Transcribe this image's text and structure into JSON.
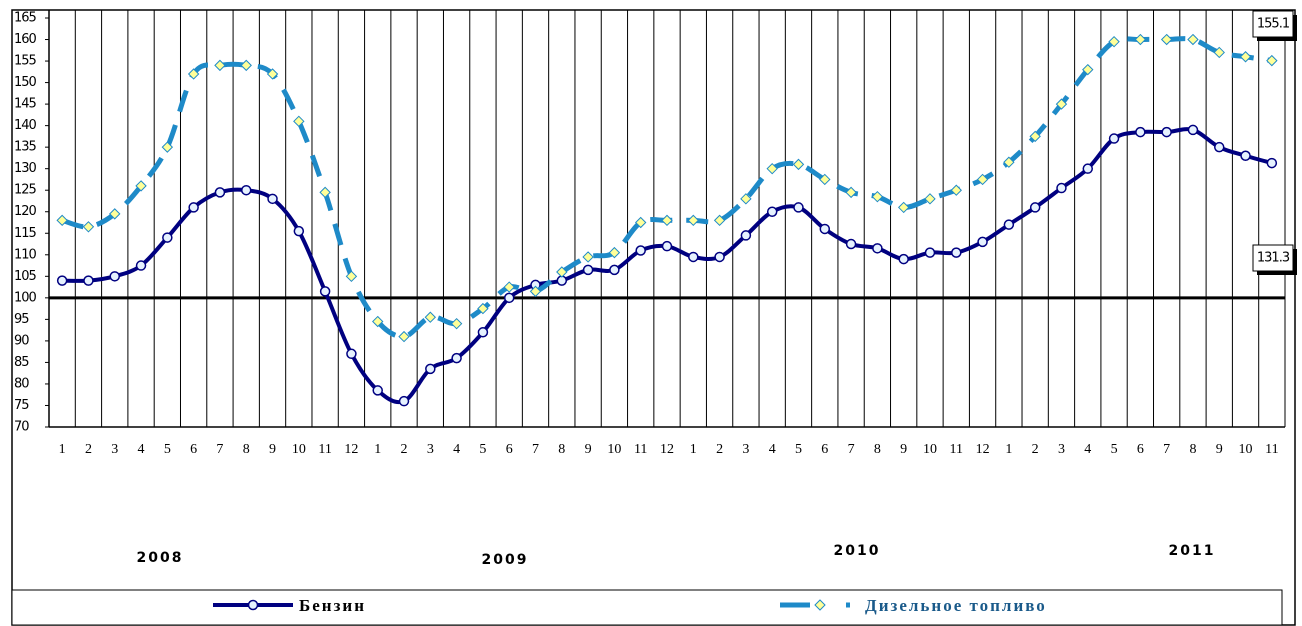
{
  "chart_data": {
    "type": "line",
    "categories": [
      "1",
      "2",
      "3",
      "4",
      "5",
      "6",
      "7",
      "8",
      "9",
      "10",
      "11",
      "12",
      "1",
      "2",
      "3",
      "4",
      "5",
      "6",
      "7",
      "8",
      "9",
      "10",
      "11",
      "12",
      "1",
      "2",
      "3",
      "4",
      "5",
      "6",
      "7",
      "8",
      "9",
      "10",
      "11",
      "12",
      "1",
      "2",
      "3",
      "4",
      "5",
      "6",
      "7",
      "8",
      "9",
      "10",
      "11"
    ],
    "x_groups": [
      "2008",
      "2009",
      "2010",
      "2011"
    ],
    "ylim": [
      70,
      165
    ],
    "yticks": [
      70,
      75,
      80,
      85,
      90,
      95,
      100,
      105,
      110,
      115,
      120,
      125,
      130,
      135,
      140,
      145,
      150,
      155,
      160,
      165
    ],
    "reference_line": 100,
    "vertical_grid": true,
    "legend": "bottom",
    "series": [
      {
        "name": "Бензин",
        "color": "#000080",
        "marker": "circle",
        "marker_fill": "#e6f2ff",
        "dashed": false,
        "values": [
          104,
          104,
          105,
          107.5,
          114,
          121,
          124.5,
          125,
          123,
          115.5,
          101.5,
          87,
          78.5,
          76,
          83.5,
          86,
          92,
          100,
          103,
          104,
          106.5,
          106.5,
          111,
          112,
          109.5,
          109.5,
          114.5,
          120,
          121,
          116,
          112.5,
          111.5,
          109,
          110.5,
          110.5,
          113,
          117,
          121,
          125.5,
          130,
          137,
          138.5,
          138.5,
          139,
          135,
          133,
          131.3
        ],
        "value_labels": [
          null,
          null,
          null,
          null,
          null,
          null,
          null,
          null,
          null,
          null,
          null,
          null,
          null,
          null,
          null,
          null,
          null,
          null,
          null,
          null,
          null,
          null,
          null,
          null,
          null,
          null,
          null,
          null,
          null,
          null,
          null,
          null,
          null,
          null,
          null,
          null,
          null,
          null,
          null,
          null,
          null,
          null,
          null,
          null,
          null,
          null,
          "131.3"
        ]
      },
      {
        "name": "Дизельное топливо",
        "color": "#1e8ac8",
        "marker": "diamond",
        "marker_fill": "#ffff99",
        "dashed": true,
        "values": [
          118,
          116.5,
          119.5,
          126,
          135,
          152,
          154,
          154,
          152,
          141,
          124.5,
          105,
          94.5,
          91,
          95.5,
          94,
          97.5,
          102.5,
          101.5,
          106,
          109.5,
          110.5,
          117.5,
          118,
          118,
          118,
          123,
          130,
          131,
          127.5,
          124.5,
          123.5,
          121,
          123,
          125,
          127.5,
          131.5,
          137.5,
          145,
          153,
          159.5,
          160,
          160,
          160,
          157,
          156,
          155.1
        ],
        "value_labels": [
          null,
          null,
          null,
          null,
          null,
          null,
          null,
          null,
          null,
          null,
          null,
          null,
          null,
          null,
          null,
          null,
          null,
          null,
          null,
          null,
          null,
          null,
          null,
          null,
          null,
          null,
          null,
          null,
          null,
          null,
          null,
          null,
          null,
          null,
          null,
          null,
          null,
          null,
          null,
          null,
          null,
          null,
          null,
          null,
          null,
          null,
          "155.1"
        ]
      }
    ]
  }
}
